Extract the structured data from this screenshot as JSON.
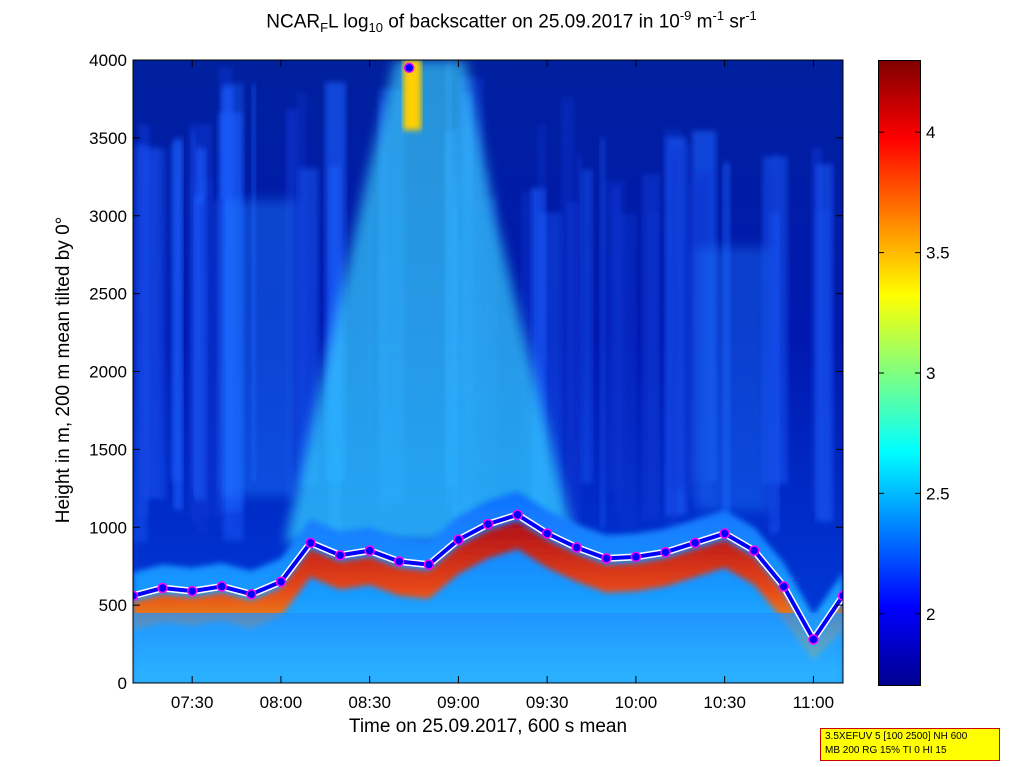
{
  "chart_data": {
    "type": "heatmap",
    "title": {
      "prefix": "NCAR",
      "sub1": "F",
      "mid1": "L log",
      "sub2": "10",
      "mid2": " of backscatter on 25.09.2017 in 10",
      "sup1": "-9",
      "mid3": " m",
      "sup2": "-1",
      "mid4": " sr",
      "sup3": "-1"
    },
    "xlabel": "Time on 25.09.2017, 600 s mean",
    "ylabel": "Height in m, 200 m mean tilted by 0°",
    "x_ticks": [
      "07:30",
      "08:00",
      "08:30",
      "09:00",
      "09:30",
      "10:00",
      "10:30",
      "11:00"
    ],
    "x_range": [
      "07:10",
      "11:10"
    ],
    "y_ticks": [
      0,
      500,
      1000,
      1500,
      2000,
      2500,
      3000,
      3500,
      4000
    ],
    "y_range": [
      0,
      4000
    ],
    "colorbar": {
      "ticks": [
        "2",
        "2.5",
        "3",
        "3.5",
        "4"
      ],
      "range": [
        1.7,
        4.3
      ],
      "colormap": "jet"
    },
    "layers": {
      "surface_layer_top_m": 450,
      "aerosol_layer_top_m": 950,
      "plume_time": "08:42",
      "plume_height_m": 3950
    },
    "boundary_layer": {
      "time": [
        "07:10",
        "07:20",
        "07:30",
        "07:40",
        "07:50",
        "08:00",
        "08:10",
        "08:20",
        "08:30",
        "08:40",
        "08:50",
        "09:00",
        "09:10",
        "09:20",
        "09:30",
        "09:40",
        "09:50",
        "10:00",
        "10:10",
        "10:20",
        "10:30",
        "10:40",
        "10:50",
        "11:00",
        "11:10"
      ],
      "height_m": [
        560,
        610,
        590,
        620,
        570,
        650,
        900,
        820,
        850,
        780,
        760,
        920,
        1020,
        1080,
        960,
        870,
        800,
        810,
        840,
        900,
        960,
        850,
        620,
        280,
        560
      ]
    }
  },
  "infobox": {
    "line1": "3.5XEFUV 5 [100 2500] NH 600",
    "line2": "MB 200 RG 15% TI 0 HI 15"
  },
  "colors": {
    "layer_marker": "#0000ff",
    "marker_outline": "#ff00ff",
    "frame": "#000000"
  }
}
